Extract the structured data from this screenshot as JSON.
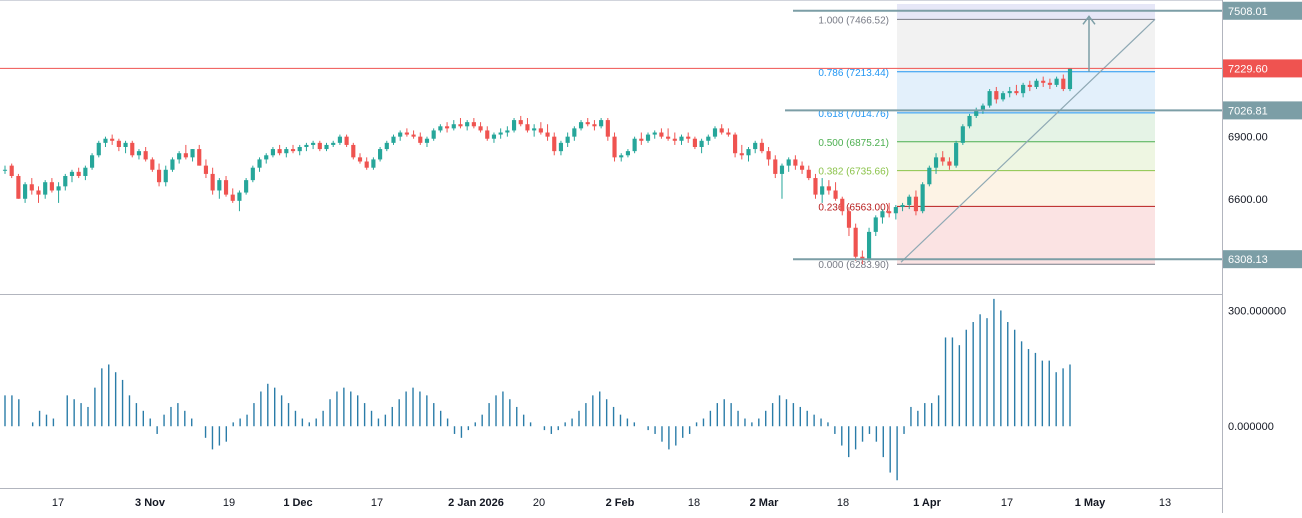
{
  "chart_data": [
    {
      "type": "candlestick",
      "title": "",
      "xlabel": "",
      "ylabel": "",
      "ylim": [
        6140,
        7560
      ],
      "x_ticks": [
        "17",
        "3 Nov",
        "19",
        "1 Dec",
        "17",
        "2 Jan 2026",
        "20",
        "2 Feb",
        "18",
        "2 Mar",
        "18",
        "1 Apr",
        "17",
        "1 May",
        "13"
      ],
      "y_ticks": [
        "6600.00",
        "6900.00"
      ],
      "current_price": "7229.60",
      "price_tags": [
        "7508.01",
        "7026.81",
        "6308.13"
      ],
      "fibonacci": [
        {
          "label": "1.000 (7466.52)",
          "value": 7466.52,
          "color": "#787b86"
        },
        {
          "label": "0.786 (7213.44)",
          "value": 7213.44,
          "color": "#2196f3"
        },
        {
          "label": "0.618 (7014.76)",
          "value": 7014.76,
          "color": "#2196f3"
        },
        {
          "label": "0.500 (6875.21)",
          "value": 6875.21,
          "color": "#4caf50"
        },
        {
          "label": "0.382 (6735.66)",
          "value": 6735.66,
          "color": "#8bc34a"
        },
        {
          "label": "0.236 (6563.00)",
          "value": 6563.0,
          "color": "#b71c1c"
        },
        {
          "label": "0.000 (6283.90)",
          "value": 6283.9,
          "color": "#787b86"
        }
      ],
      "candles_ohlc": [
        [
          6740,
          6760,
          6720,
          6740
        ],
        [
          6760,
          6770,
          6700,
          6710
        ],
        [
          6710,
          6720,
          6600,
          6600
        ],
        [
          6600,
          6680,
          6580,
          6670
        ],
        [
          6670,
          6700,
          6620,
          6640
        ],
        [
          6640,
          6660,
          6580,
          6620
        ],
        [
          6620,
          6690,
          6600,
          6680
        ],
        [
          6680,
          6700,
          6630,
          6640
        ],
        [
          6640,
          6680,
          6580,
          6660
        ],
        [
          6660,
          6720,
          6640,
          6710
        ],
        [
          6710,
          6740,
          6680,
          6730
        ],
        [
          6730,
          6750,
          6700,
          6710
        ],
        [
          6710,
          6760,
          6690,
          6750
        ],
        [
          6750,
          6820,
          6740,
          6810
        ],
        [
          6810,
          6880,
          6800,
          6870
        ],
        [
          6870,
          6900,
          6850,
          6890
        ],
        [
          6890,
          6910,
          6860,
          6880
        ],
        [
          6880,
          6890,
          6830,
          6850
        ],
        [
          6850,
          6880,
          6820,
          6870
        ],
        [
          6870,
          6880,
          6800,
          6810
        ],
        [
          6810,
          6840,
          6790,
          6830
        ],
        [
          6830,
          6850,
          6780,
          6790
        ],
        [
          6790,
          6800,
          6730,
          6740
        ],
        [
          6740,
          6770,
          6660,
          6680
        ],
        [
          6680,
          6760,
          6660,
          6740
        ],
        [
          6740,
          6800,
          6730,
          6790
        ],
        [
          6790,
          6830,
          6770,
          6820
        ],
        [
          6820,
          6860,
          6790,
          6800
        ],
        [
          6800,
          6840,
          6780,
          6840
        ],
        [
          6840,
          6860,
          6760,
          6760
        ],
        [
          6760,
          6790,
          6700,
          6720
        ],
        [
          6720,
          6750,
          6620,
          6640
        ],
        [
          6640,
          6700,
          6600,
          6690
        ],
        [
          6690,
          6710,
          6610,
          6620
        ],
        [
          6620,
          6650,
          6580,
          6590
        ],
        [
          6590,
          6640,
          6540,
          6630
        ],
        [
          6630,
          6700,
          6620,
          6690
        ],
        [
          6690,
          6760,
          6680,
          6750
        ],
        [
          6750,
          6800,
          6730,
          6790
        ],
        [
          6790,
          6820,
          6770,
          6810
        ],
        [
          6810,
          6850,
          6800,
          6840
        ],
        [
          6840,
          6860,
          6810,
          6820
        ],
        [
          6820,
          6850,
          6800,
          6840
        ],
        [
          6840,
          6860,
          6820,
          6830
        ],
        [
          6830,
          6860,
          6810,
          6850
        ],
        [
          6850,
          6870,
          6830,
          6860
        ],
        [
          6860,
          6880,
          6840,
          6870
        ],
        [
          6870,
          6880,
          6830,
          6840
        ],
        [
          6840,
          6870,
          6830,
          6860
        ],
        [
          6860,
          6880,
          6850,
          6870
        ],
        [
          6870,
          6910,
          6860,
          6900
        ],
        [
          6900,
          6910,
          6850,
          6860
        ],
        [
          6860,
          6870,
          6790,
          6800
        ],
        [
          6800,
          6820,
          6770,
          6780
        ],
        [
          6780,
          6800,
          6740,
          6750
        ],
        [
          6750,
          6800,
          6740,
          6790
        ],
        [
          6790,
          6850,
          6780,
          6840
        ],
        [
          6840,
          6880,
          6830,
          6870
        ],
        [
          6870,
          6910,
          6860,
          6900
        ],
        [
          6900,
          6930,
          6880,
          6920
        ],
        [
          6920,
          6940,
          6900,
          6910
        ],
        [
          6910,
          6930,
          6890,
          6900
        ],
        [
          6900,
          6920,
          6860,
          6870
        ],
        [
          6870,
          6900,
          6850,
          6890
        ],
        [
          6890,
          6940,
          6880,
          6930
        ],
        [
          6930,
          6960,
          6920,
          6950
        ],
        [
          6950,
          6970,
          6920,
          6940
        ],
        [
          6940,
          6980,
          6930,
          6960
        ],
        [
          6960,
          6990,
          6940,
          6950
        ],
        [
          6950,
          6980,
          6930,
          6970
        ],
        [
          6970,
          6990,
          6940,
          6950
        ],
        [
          6950,
          6970,
          6920,
          6930
        ],
        [
          6930,
          6950,
          6880,
          6890
        ],
        [
          6890,
          6920,
          6870,
          6910
        ],
        [
          6910,
          6940,
          6890,
          6920
        ],
        [
          6920,
          6950,
          6900,
          6930
        ],
        [
          6930,
          6990,
          6920,
          6980
        ],
        [
          6980,
          7000,
          6950,
          6960
        ],
        [
          6960,
          6990,
          6920,
          6930
        ],
        [
          6930,
          6960,
          6900,
          6940
        ],
        [
          6940,
          6970,
          6910,
          6920
        ],
        [
          6920,
          6960,
          6880,
          6900
        ],
        [
          6900,
          6920,
          6810,
          6830
        ],
        [
          6830,
          6880,
          6810,
          6870
        ],
        [
          6870,
          6920,
          6850,
          6900
        ],
        [
          6900,
          6950,
          6880,
          6940
        ],
        [
          6940,
          6980,
          6930,
          6970
        ],
        [
          6970,
          6990,
          6950,
          6960
        ],
        [
          6960,
          6980,
          6930,
          6950
        ],
        [
          6950,
          6990,
          6940,
          6980
        ],
        [
          6980,
          6990,
          6880,
          6900
        ],
        [
          6900,
          6920,
          6780,
          6800
        ],
        [
          6800,
          6820,
          6780,
          6810
        ],
        [
          6810,
          6840,
          6800,
          6830
        ],
        [
          6830,
          6900,
          6820,
          6890
        ],
        [
          6890,
          6920,
          6860,
          6880
        ],
        [
          6880,
          6920,
          6870,
          6910
        ],
        [
          6910,
          6930,
          6890,
          6920
        ],
        [
          6920,
          6940,
          6890,
          6900
        ],
        [
          6900,
          6940,
          6880,
          6890
        ],
        [
          6890,
          6920,
          6860,
          6880
        ],
        [
          6880,
          6910,
          6860,
          6900
        ],
        [
          6900,
          6920,
          6870,
          6890
        ],
        [
          6890,
          6900,
          6840,
          6850
        ],
        [
          6850,
          6890,
          6820,
          6880
        ],
        [
          6880,
          6910,
          6860,
          6900
        ],
        [
          6900,
          6950,
          6890,
          6940
        ],
        [
          6940,
          6960,
          6910,
          6920
        ],
        [
          6920,
          6940,
          6900,
          6910
        ],
        [
          6910,
          6920,
          6800,
          6820
        ],
        [
          6820,
          6860,
          6790,
          6810
        ],
        [
          6810,
          6850,
          6780,
          6840
        ],
        [
          6840,
          6880,
          6820,
          6870
        ],
        [
          6870,
          6890,
          6820,
          6830
        ],
        [
          6830,
          6850,
          6760,
          6790
        ],
        [
          6790,
          6810,
          6700,
          6720
        ],
        [
          6720,
          6770,
          6600,
          6760
        ],
        [
          6760,
          6800,
          6730,
          6790
        ],
        [
          6790,
          6810,
          6740,
          6760
        ],
        [
          6760,
          6780,
          6720,
          6740
        ],
        [
          6740,
          6760,
          6690,
          6700
        ],
        [
          6700,
          6720,
          6600,
          6620
        ],
        [
          6620,
          6700,
          6580,
          6660
        ],
        [
          6660,
          6690,
          6620,
          6640
        ],
        [
          6640,
          6680,
          6590,
          6600
        ],
        [
          6600,
          6610,
          6520,
          6540
        ],
        [
          6540,
          6560,
          6420,
          6460
        ],
        [
          6460,
          6480,
          6300,
          6320
        ],
        [
          6320,
          6350,
          6284,
          6310
        ],
        [
          6310,
          6460,
          6300,
          6440
        ],
        [
          6440,
          6520,
          6420,
          6510
        ],
        [
          6510,
          6550,
          6480,
          6540
        ],
        [
          6540,
          6580,
          6510,
          6530
        ],
        [
          6530,
          6570,
          6500,
          6560
        ],
        [
          6560,
          6580,
          6540,
          6570
        ],
        [
          6570,
          6620,
          6550,
          6610
        ],
        [
          6610,
          6640,
          6520,
          6540
        ],
        [
          6540,
          6680,
          6530,
          6670
        ],
        [
          6670,
          6760,
          6660,
          6750
        ],
        [
          6750,
          6820,
          6720,
          6800
        ],
        [
          6800,
          6830,
          6760,
          6780
        ],
        [
          6780,
          6800,
          6740,
          6760
        ],
        [
          6760,
          6880,
          6750,
          6870
        ],
        [
          6870,
          6960,
          6860,
          6950
        ],
        [
          6950,
          7010,
          6940,
          7000
        ],
        [
          7000,
          7040,
          6990,
          7030
        ],
        [
          7030,
          7060,
          7010,
          7050
        ],
        [
          7050,
          7130,
          7040,
          7120
        ],
        [
          7120,
          7140,
          7060,
          7080
        ],
        [
          7080,
          7120,
          7070,
          7110
        ],
        [
          7110,
          7140,
          7090,
          7120
        ],
        [
          7120,
          7150,
          7100,
          7110
        ],
        [
          7110,
          7160,
          7090,
          7150
        ],
        [
          7150,
          7170,
          7120,
          7140
        ],
        [
          7140,
          7180,
          7130,
          7170
        ],
        [
          7170,
          7190,
          7140,
          7160
        ],
        [
          7160,
          7180,
          7130,
          7150
        ],
        [
          7150,
          7190,
          7140,
          7180
        ],
        [
          7180,
          7200,
          7120,
          7130
        ],
        [
          7130,
          7230,
          7120,
          7230
        ]
      ],
      "histogram": [
        80,
        80,
        70,
        0,
        10,
        40,
        30,
        20,
        0,
        80,
        70,
        60,
        50,
        100,
        150,
        160,
        140,
        120,
        80,
        60,
        40,
        20,
        -20,
        30,
        50,
        60,
        40,
        20,
        0,
        -30,
        -60,
        -50,
        -40,
        10,
        20,
        30,
        60,
        90,
        110,
        100,
        80,
        60,
        40,
        20,
        10,
        20,
        40,
        70,
        90,
        100,
        90,
        80,
        60,
        40,
        20,
        30,
        50,
        70,
        90,
        100,
        90,
        80,
        60,
        40,
        20,
        -20,
        -30,
        -10,
        10,
        30,
        60,
        80,
        90,
        70,
        50,
        30,
        10,
        0,
        -10,
        -20,
        -10,
        10,
        20,
        40,
        60,
        80,
        90,
        70,
        50,
        30,
        20,
        10,
        0,
        -10,
        -20,
        -40,
        -60,
        -50,
        -30,
        -20,
        10,
        20,
        40,
        60,
        70,
        60,
        40,
        20,
        10,
        20,
        40,
        60,
        80,
        70,
        60,
        50,
        40,
        30,
        20,
        10,
        -20,
        -50,
        -80,
        -60,
        -40,
        -20,
        -40,
        -80,
        -120,
        -140,
        -20,
        50,
        40,
        60,
        60,
        80,
        230,
        230,
        210,
        250,
        270,
        290,
        280,
        330,
        300,
        270,
        250,
        220,
        200,
        190,
        170,
        170,
        140,
        150,
        160
      ],
      "histogram_y_ticks": [
        "300.000000",
        "0.000000"
      ],
      "histogram_ylim": [
        -160,
        340
      ]
    }
  ]
}
